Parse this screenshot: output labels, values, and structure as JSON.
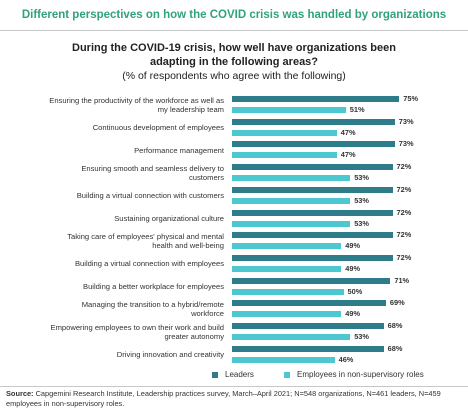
{
  "chart_data": {
    "type": "bar",
    "orientation": "horizontal",
    "header": "Different perspectives on how the COVID crisis was handled by organizations",
    "title": "During the COVID-19 crisis, how well have organizations been adapting in the following areas?",
    "subtitle": "(% of respondents who agree with the following)",
    "categories": [
      "Ensuring the productivity of the workforce as well as my leadership team",
      "Continuous development of employees",
      "Performance management",
      "Ensuring smooth and seamless delivery to customers",
      "Building a virtual connection with customers",
      "Sustaining organizational culture",
      "Taking care of employees' physical and mental health and well-being",
      "Building a virtual connection with employees",
      "Building a better workplace for employees",
      "Managing the transition to a hybrid/remote workforce",
      "Empowering employees to own their work and build greater autonomy",
      "Driving innovation and creativity"
    ],
    "series": [
      {
        "name": "Leaders",
        "color": "#2e7b8a",
        "values": [
          75,
          73,
          73,
          72,
          72,
          72,
          72,
          72,
          71,
          69,
          68,
          68
        ],
        "value_labels": [
          "75%",
          "73%",
          "73%",
          "72%",
          "72%",
          "72%",
          "72%",
          "72%",
          "71%",
          "69%",
          "68%",
          "68%"
        ]
      },
      {
        "name": "Employees in non-supervisory roles",
        "color": "#4ec8d0",
        "values": [
          51,
          47,
          47,
          53,
          53,
          53,
          49,
          49,
          50,
          49,
          53,
          46
        ],
        "value_labels": [
          "51%",
          "47%",
          "47%",
          "53%",
          "53%",
          "53%",
          "49%",
          "49%",
          "50%",
          "49%",
          "53%",
          "46%"
        ]
      }
    ],
    "source_label": "Source:",
    "source": "Capgemini Research Institute, Leadership practices survey, March–April 2021; N=548 organizations, N=461 leaders, N=459 employees in non-supervisory roles."
  }
}
